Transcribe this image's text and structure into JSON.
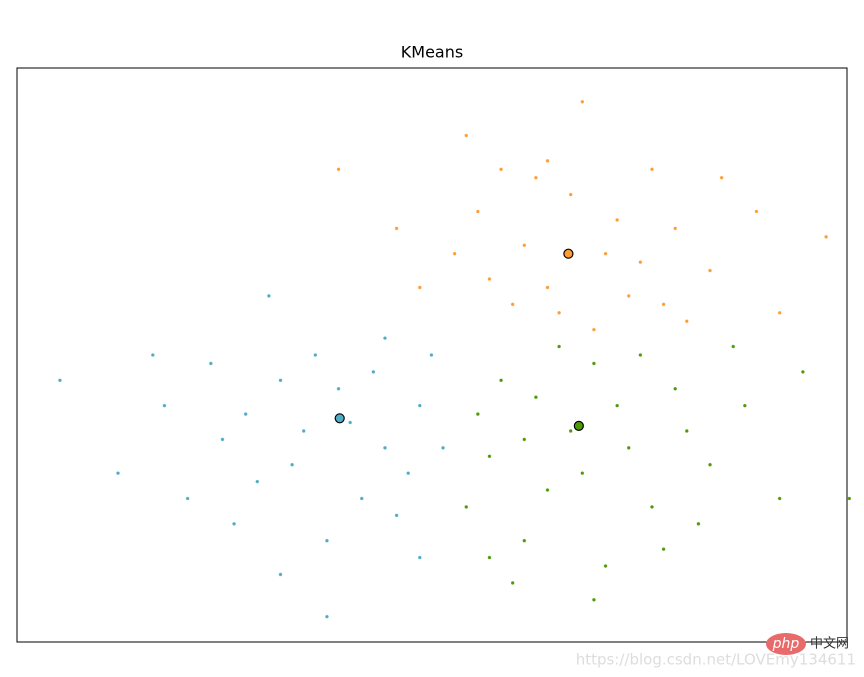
{
  "chart_data": {
    "type": "scatter",
    "title": "KMeans",
    "xlim": [
      -3.77,
      3.38
    ],
    "ylim": [
      -3.6,
      3.2
    ],
    "series": [
      {
        "color": "#ff9c34",
        "x": [
          0.2,
          1.5,
          0.8,
          1.9,
          0.5,
          1.2,
          2.2,
          0.1,
          1.0,
          1.7,
          0.6,
          1.4,
          2.6,
          0.3,
          0.9,
          2.0,
          1.1,
          -0.5,
          -1.0,
          2.8,
          0.7,
          1.6,
          1.3,
          0.4,
          2.3,
          3.2,
          -0.3,
          0.0,
          1.8,
          0.8
        ],
        "y": [
          1.5,
          0.5,
          2.1,
          1.3,
          0.4,
          0.1,
          0.8,
          2.4,
          1.7,
          2.0,
          1.1,
          1.4,
          1.5,
          0.7,
          0.3,
          0.2,
          2.8,
          1.3,
          2.0,
          0.3,
          1.9,
          0.9,
          1.0,
          2.0,
          1.9,
          1.2,
          0.6,
          1.0,
          0.4,
          0.6
        ]
      },
      {
        "color": "#4eacc5",
        "x": [
          -1.5,
          -0.6,
          -2.0,
          -1.2,
          -0.3,
          -0.8,
          -1.7,
          -2.5,
          -1.0,
          -0.4,
          -1.3,
          -2.1,
          -0.7,
          -1.9,
          -0.2,
          -1.1,
          -3.4,
          -2.9,
          -1.6,
          -0.5,
          -1.4,
          -0.9,
          -2.3,
          -0.1,
          -1.8,
          -1.1,
          -2.6,
          -0.6,
          -1.5,
          -0.3
        ],
        "y": [
          -0.5,
          -1.3,
          -1.2,
          -0.2,
          -0.8,
          -1.9,
          -1.7,
          -0.8,
          -0.6,
          -1.6,
          -1.1,
          -0.3,
          -0.4,
          -2.2,
          -0.2,
          -2.4,
          -0.5,
          -1.6,
          0.5,
          -2.1,
          -1.5,
          -1.0,
          -1.9,
          -1.3,
          -0.9,
          -3.3,
          -0.2,
          0.0,
          -2.8,
          -2.6
        ]
      },
      {
        "color": "#4e9a06",
        "x": [
          0.4,
          1.5,
          0.8,
          1.9,
          0.3,
          1.2,
          2.2,
          0.6,
          1.0,
          1.7,
          0.2,
          2.5,
          1.3,
          0.7,
          2.0,
          1.6,
          0.5,
          2.8,
          1.1,
          3.0,
          0.9,
          1.8,
          0.1,
          2.4,
          1.4,
          3.4,
          0.3,
          2.1,
          1.2,
          0.6
        ],
        "y": [
          -0.5,
          -1.3,
          -1.8,
          -0.6,
          -1.4,
          -0.3,
          -1.5,
          -2.4,
          -1.1,
          -2.0,
          -0.9,
          -0.8,
          -2.7,
          -0.7,
          -1.1,
          -0.2,
          -2.9,
          -1.9,
          -1.6,
          -0.4,
          -0.1,
          -2.5,
          -2.0,
          -0.1,
          -0.8,
          -1.9,
          -2.6,
          -2.2,
          -3.1,
          -1.2
        ]
      }
    ],
    "centers": {
      "x": [
        0.98,
        -0.99,
        1.07
      ],
      "y": [
        1.0,
        -0.95,
        -1.04
      ],
      "colors": [
        "#ff9c34",
        "#4eacc5",
        "#4e9a06"
      ]
    },
    "watermark": {
      "logo": "php",
      "site": "中文网",
      "url": "https://blog.csdn.net/LOVEmy134611"
    }
  }
}
